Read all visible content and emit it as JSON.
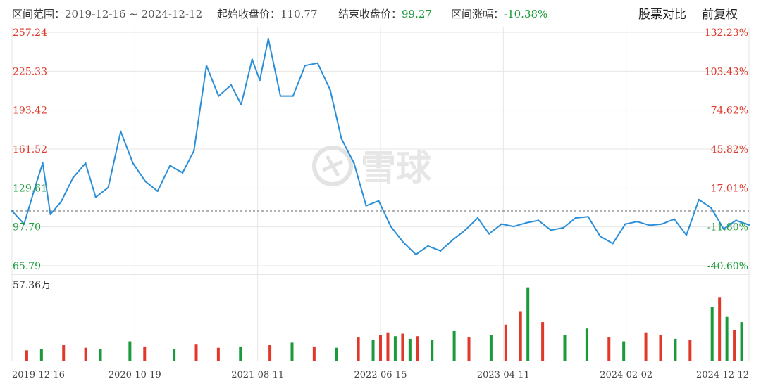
{
  "header": {
    "range_label": "区间范围：",
    "range_start": "2019-12-16",
    "range_sep": "~",
    "range_end": "2024-12-12",
    "start_close_label": "起始收盘价：",
    "start_close": "110.77",
    "end_close_label": "结束收盘价：",
    "end_close": "99.27",
    "change_label": "区间涨幅：",
    "change": "-10.38%",
    "compare_button": "股票对比",
    "adjust_button": "前复权"
  },
  "watermark": {
    "text": "雪球",
    "icon": "snowball-logo-icon"
  },
  "colors": {
    "line": "#2a8fd8",
    "up": "#e0392b",
    "down": "#1a9a3a",
    "grid": "#e6e6e6",
    "reference": "#666666"
  },
  "chart_data": [
    {
      "type": "line",
      "title": "",
      "x_start": "2019-12-16",
      "x_end": "2024-12-12",
      "x_ticks": [
        "2019-12-16",
        "2020-10-19",
        "2021-08-11",
        "2022-06-15",
        "2023-04-11",
        "2024-02-02",
        "2024-12-12"
      ],
      "y_left_ticks": [
        "257.24",
        "225.33",
        "193.42",
        "161.52",
        "129.61",
        "97.70",
        "65.79"
      ],
      "y_right_ticks": [
        "132.23%",
        "103.43%",
        "74.62%",
        "45.82%",
        "17.01%",
        "-11.80%",
        "-40.60%"
      ],
      "ylim": [
        65.79,
        257.24
      ],
      "reference_value": 110.77,
      "grid": true,
      "series": [
        {
          "x": [
            "2019-12-16",
            "2020-01-15",
            "2020-02-10",
            "2020-03-01",
            "2020-03-20",
            "2020-04-15",
            "2020-05-15",
            "2020-06-15",
            "2020-07-10",
            "2020-08-10",
            "2020-09-10",
            "2020-10-10",
            "2020-11-10",
            "2020-12-10",
            "2021-01-10",
            "2021-02-10",
            "2021-03-10",
            "2021-04-10",
            "2021-05-10",
            "2021-06-10",
            "2021-07-05",
            "2021-08-01",
            "2021-08-20",
            "2021-09-10",
            "2021-10-10",
            "2021-11-10",
            "2021-12-10",
            "2022-01-10",
            "2022-02-10",
            "2022-03-10",
            "2022-04-10",
            "2022-05-10",
            "2022-06-10",
            "2022-07-10",
            "2022-08-10",
            "2022-09-10",
            "2022-10-10",
            "2022-11-10",
            "2022-12-10",
            "2023-01-10",
            "2023-02-10",
            "2023-03-10",
            "2023-04-10",
            "2023-05-10",
            "2023-06-10",
            "2023-07-10",
            "2023-08-10",
            "2023-09-10",
            "2023-10-10",
            "2023-11-10",
            "2023-12-10",
            "2024-01-10",
            "2024-02-10",
            "2024-03-10",
            "2024-04-10",
            "2024-05-10",
            "2024-06-10",
            "2024-07-10",
            "2024-08-10",
            "2024-09-10",
            "2024-10-10",
            "2024-11-10",
            "2024-12-12"
          ],
          "y": [
            110.8,
            100.0,
            129.0,
            150.0,
            108.0,
            118.0,
            138.0,
            150.0,
            122.0,
            130.0,
            176.0,
            150.0,
            135.0,
            127.0,
            148.0,
            142.0,
            160.0,
            230.0,
            205.0,
            214.0,
            198.0,
            235.0,
            218.0,
            252.0,
            205.0,
            205.0,
            230.0,
            232.0,
            210.0,
            170.0,
            150.0,
            115.0,
            119.0,
            98.0,
            85.0,
            75.0,
            82.0,
            78.0,
            87.0,
            95.0,
            105.0,
            92.0,
            100.0,
            98.0,
            101.0,
            103.0,
            95.0,
            97.0,
            105.0,
            106.0,
            90.0,
            84.0,
            100.0,
            102.0,
            99.0,
            100.0,
            104.0,
            91.0,
            120.0,
            113.0,
            96.0,
            103.0,
            99.3
          ]
        }
      ]
    },
    {
      "type": "bar",
      "title": "",
      "y_max_label": "57.36万",
      "ylim": [
        0,
        57.36
      ],
      "y_unit": "万",
      "x_start": "2019-12-16",
      "x_end": "2024-12-12",
      "positions": [
        0.02,
        0.04,
        0.07,
        0.1,
        0.12,
        0.16,
        0.18,
        0.22,
        0.25,
        0.28,
        0.31,
        0.35,
        0.38,
        0.41,
        0.44,
        0.47,
        0.49,
        0.5,
        0.51,
        0.52,
        0.53,
        0.54,
        0.55,
        0.57,
        0.6,
        0.62,
        0.65,
        0.67,
        0.69,
        0.7,
        0.72,
        0.75,
        0.78,
        0.81,
        0.83,
        0.86,
        0.88,
        0.9,
        0.92,
        0.95,
        0.96,
        0.97,
        0.98,
        0.99
      ],
      "values": [
        8,
        9,
        12,
        10,
        9,
        15,
        11,
        9,
        13,
        10,
        11,
        12,
        14,
        11,
        10,
        18,
        16,
        20,
        22,
        19,
        21,
        17,
        19,
        16,
        23,
        18,
        20,
        28,
        38,
        57,
        30,
        20,
        25,
        18,
        15,
        22,
        20,
        17,
        16,
        42,
        49,
        34,
        24,
        30
      ],
      "directions": [
        "up",
        "down",
        "up",
        "up",
        "down",
        "down",
        "up",
        "down",
        "up",
        "up",
        "down",
        "up",
        "down",
        "up",
        "down",
        "up",
        "down",
        "up",
        "up",
        "down",
        "up",
        "down",
        "up",
        "down",
        "down",
        "up",
        "down",
        "up",
        "up",
        "down",
        "up",
        "down",
        "down",
        "up",
        "down",
        "up",
        "up",
        "down",
        "up",
        "down",
        "up",
        "down",
        "up",
        "down"
      ]
    }
  ]
}
